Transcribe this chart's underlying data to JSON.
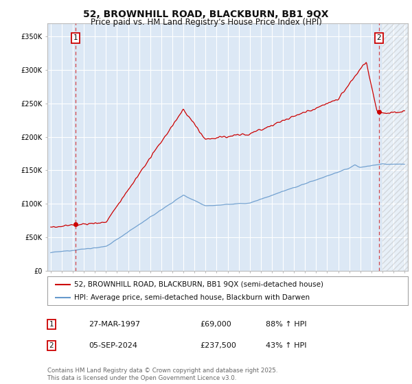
{
  "title": "52, BROWNHILL ROAD, BLACKBURN, BB1 9QX",
  "subtitle": "Price paid vs. HM Land Registry's House Price Index (HPI)",
  "ylabel_ticks": [
    "£0",
    "£50K",
    "£100K",
    "£150K",
    "£200K",
    "£250K",
    "£300K",
    "£350K"
  ],
  "ytick_values": [
    0,
    50000,
    100000,
    150000,
    200000,
    250000,
    300000,
    350000
  ],
  "ylim": [
    0,
    370000
  ],
  "xlim_start": 1994.7,
  "xlim_end": 2027.3,
  "background_color": "#ffffff",
  "plot_bg_color": "#dce8f5",
  "grid_color": "#ffffff",
  "red_line_color": "#cc0000",
  "blue_line_color": "#6699cc",
  "vline1_x": 1997.23,
  "vline2_x": 2024.68,
  "marker1_y": 69000,
  "marker2_y": 237500,
  "legend_label1": "52, BROWNHILL ROAD, BLACKBURN, BB1 9QX (semi-detached house)",
  "legend_label2": "HPI: Average price, semi-detached house, Blackburn with Darwen",
  "annot1_label": "1",
  "annot2_label": "2",
  "table_row1": [
    "1",
    "27-MAR-1997",
    "£69,000",
    "88% ↑ HPI"
  ],
  "table_row2": [
    "2",
    "05-SEP-2024",
    "£237,500",
    "43% ↑ HPI"
  ],
  "footer": "Contains HM Land Registry data © Crown copyright and database right 2025.\nThis data is licensed under the Open Government Licence v3.0.",
  "title_fontsize": 10,
  "subtitle_fontsize": 8.5,
  "tick_fontsize": 7,
  "legend_fontsize": 7.5,
  "table_fontsize": 8,
  "hatch_start": 2025.0,
  "hatch_end": 2027.3
}
